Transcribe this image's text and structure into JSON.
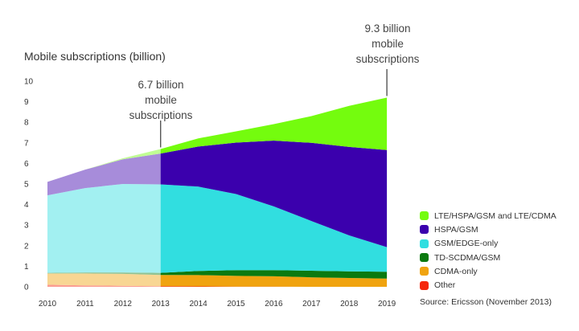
{
  "chart_data": {
    "type": "area",
    "title": "Mobile subscriptions (billion)",
    "xlabel": "",
    "ylabel": "Mobile subscriptions (billion)",
    "categories": [
      "2010",
      "2011",
      "2012",
      "2013",
      "2014",
      "2015",
      "2016",
      "2017",
      "2018",
      "2019"
    ],
    "ylim": [
      0,
      10
    ],
    "yticks": [
      0,
      1,
      2,
      3,
      4,
      5,
      6,
      7,
      8,
      9,
      10
    ],
    "stacked": true,
    "forecast_from": "2013",
    "series": [
      {
        "name": "Other",
        "color": "#f5260a",
        "values": [
          0.1,
          0.07,
          0.05,
          0.03,
          0.02,
          0.01,
          0.01,
          0.0,
          0.0,
          0.0
        ]
      },
      {
        "name": "CDMA-only",
        "color": "#f0a30f",
        "values": [
          0.55,
          0.58,
          0.58,
          0.55,
          0.55,
          0.52,
          0.5,
          0.46,
          0.43,
          0.4
        ]
      },
      {
        "name": "TD-SCDMA/GSM",
        "color": "#0b7a10",
        "values": [
          0.03,
          0.05,
          0.07,
          0.1,
          0.2,
          0.28,
          0.3,
          0.32,
          0.32,
          0.33
        ]
      },
      {
        "name": "GSM/EDGE-only",
        "color": "#31dee0",
        "values": [
          3.77,
          4.1,
          4.3,
          4.3,
          4.1,
          3.7,
          3.1,
          2.42,
          1.75,
          1.2
        ]
      },
      {
        "name": "HSPA/GSM",
        "color": "#3b00ad",
        "values": [
          0.65,
          0.9,
          1.2,
          1.5,
          1.95,
          2.5,
          3.2,
          3.8,
          4.3,
          4.72
        ]
      },
      {
        "name": "LTE/HSPA/GSM and LTE/CDMA",
        "color": "#74fc0e",
        "values": [
          0.0,
          0.0,
          0.05,
          0.22,
          0.4,
          0.55,
          0.8,
          1.3,
          2.0,
          2.55
        ]
      }
    ],
    "annotations": [
      {
        "year": "2013",
        "lines": [
          "6.7 billion",
          "mobile",
          "subscriptions"
        ]
      },
      {
        "year": "2019",
        "lines": [
          "9.3 billion",
          "mobile",
          "subscriptions"
        ]
      }
    ],
    "source": "Source: Ericsson (November 2013)",
    "legend_position": "right",
    "grid": false
  }
}
